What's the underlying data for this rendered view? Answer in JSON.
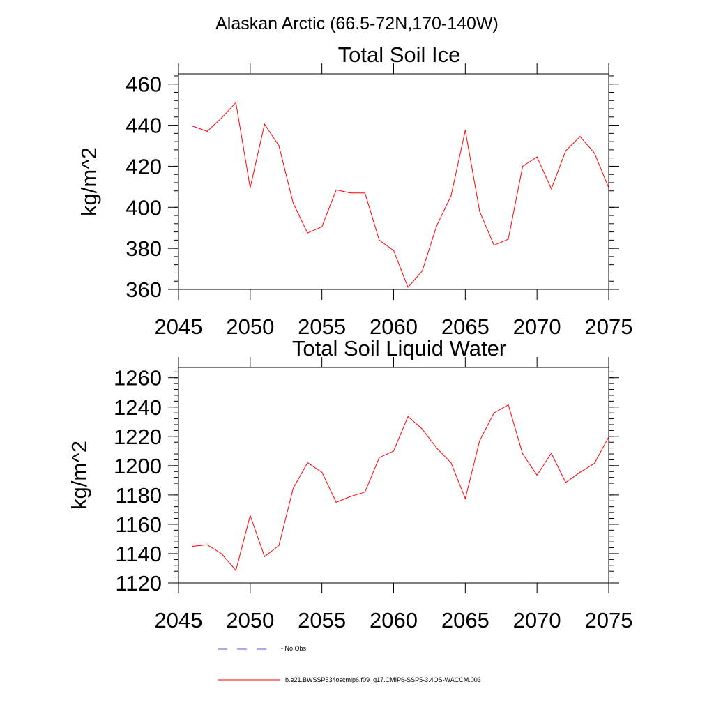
{
  "figure_title": "Alaskan Arctic (66.5-72N,170-140W)",
  "colors": {
    "model": "#ff0000",
    "obs": "#5a5ad0",
    "axis": "#000000"
  },
  "legend": {
    "obs_label": "No Obs",
    "model_label": "b.e21.BWSSP534oscmip6.f09_g17.CMIP6-SSP5-3.4OS-WACCM.003"
  },
  "chart_data": [
    {
      "type": "line",
      "title": "Total Soil Ice",
      "xlabel": "",
      "ylabel": "kg/m^2",
      "xlim": [
        2045,
        2075
      ],
      "ylim": [
        360,
        465
      ],
      "xticks": [
        2045,
        2050,
        2055,
        2060,
        2065,
        2070,
        2075
      ],
      "yticks": [
        360,
        380,
        400,
        420,
        440,
        460
      ],
      "grid": false,
      "series": [
        {
          "name": "b.e21.BWSSP534oscmip6.f09_g17.CMIP6-SSP5-3.4OS-WACCM.003",
          "x": [
            2046,
            2047,
            2048,
            2049,
            2050,
            2051,
            2052,
            2053,
            2054,
            2055,
            2056,
            2057,
            2058,
            2059,
            2060,
            2061,
            2062,
            2063,
            2064,
            2065,
            2066,
            2067,
            2068,
            2069,
            2070,
            2071,
            2072,
            2073,
            2074,
            2075
          ],
          "values": [
            439.5,
            437,
            443.5,
            451,
            409.5,
            440.5,
            430,
            402,
            387.5,
            390.5,
            408.5,
            407,
            407,
            384,
            379,
            361,
            369,
            391,
            405.5,
            437.5,
            398,
            381.5,
            384.5,
            420,
            424.5,
            409,
            427.5,
            434.5,
            426.5,
            409.5
          ]
        }
      ]
    },
    {
      "type": "line",
      "title": "Total Soil Liquid Water",
      "xlabel": "",
      "ylabel": "kg/m^2",
      "xlim": [
        2045,
        2075
      ],
      "ylim": [
        1120,
        1267
      ],
      "xticks": [
        2045,
        2050,
        2055,
        2060,
        2065,
        2070,
        2075
      ],
      "yticks": [
        1120,
        1140,
        1160,
        1180,
        1200,
        1220,
        1240,
        1260
      ],
      "grid": false,
      "series": [
        {
          "name": "b.e21.BWSSP534oscmip6.f09_g17.CMIP6-SSP5-3.4OS-WACCM.003",
          "x": [
            2046,
            2047,
            2048,
            2049,
            2050,
            2051,
            2052,
            2053,
            2054,
            2055,
            2056,
            2057,
            2058,
            2059,
            2060,
            2061,
            2062,
            2063,
            2064,
            2065,
            2066,
            2067,
            2068,
            2069,
            2070,
            2071,
            2072,
            2073,
            2074,
            2075
          ],
          "values": [
            1145,
            1146,
            1140,
            1128.5,
            1166,
            1138,
            1145.5,
            1184.5,
            1202,
            1195.5,
            1175,
            1179,
            1182,
            1205.5,
            1210,
            1233.5,
            1225,
            1212,
            1202,
            1177.5,
            1217,
            1236,
            1241.5,
            1208,
            1193.5,
            1208.5,
            1188.5,
            1195.5,
            1201.5,
            1219.5
          ]
        }
      ]
    }
  ]
}
